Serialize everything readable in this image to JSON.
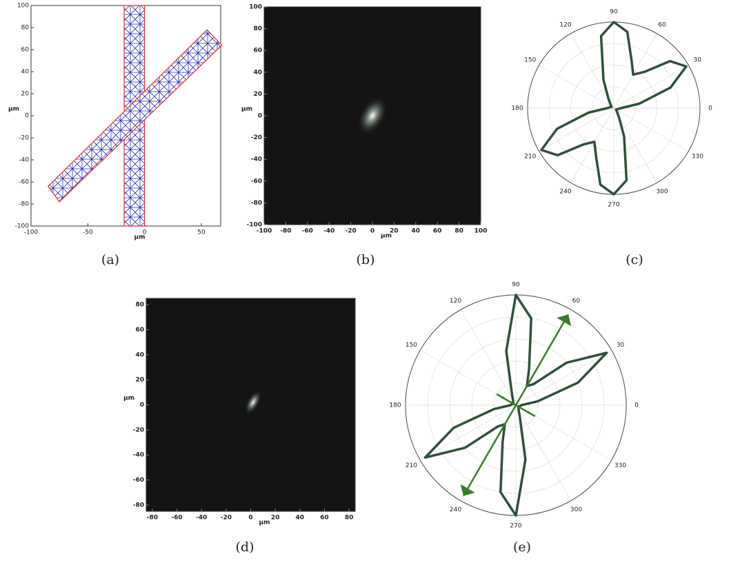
{
  "chart_data": [
    {
      "type": "mesh",
      "caption": "(a)",
      "xlabel": "µm",
      "ylabel": "µm",
      "xlim": [
        -100,
        67
      ],
      "ylim": [
        -100,
        100
      ],
      "xticks": [
        -100,
        -50,
        0,
        50
      ],
      "yticks": [
        -100,
        -80,
        -60,
        -40,
        -20,
        0,
        20,
        40,
        60,
        80,
        100
      ],
      "shapes": [
        {
          "x": [
            -18,
            0,
            0,
            -18
          ],
          "y": [
            -100,
            -100,
            100,
            100
          ]
        },
        {
          "x": [
            -85,
            -75,
            68,
            55
          ],
          "y": [
            -64,
            -78,
            64,
            78
          ]
        }
      ],
      "color": "#2a2fb0",
      "edge_color": "#e0302a"
    },
    {
      "type": "image",
      "caption": "(b)",
      "xlabel": "µm",
      "ylabel": "µm",
      "xlim": [
        -100,
        100
      ],
      "ylim": [
        -100,
        100
      ],
      "xticks": [
        -100,
        -80,
        -60,
        -40,
        -20,
        0,
        20,
        40,
        60,
        80,
        100
      ],
      "yticks": [
        -100,
        -80,
        -60,
        -40,
        -20,
        0,
        20,
        40,
        60,
        80,
        100
      ],
      "x": [
        0
      ],
      "y": [
        0
      ]
    },
    {
      "type": "polar",
      "caption": "(c)",
      "thetaticks": [
        0,
        30,
        60,
        90,
        120,
        150,
        180,
        210,
        240,
        270,
        300,
        330
      ],
      "rlim": [
        0,
        1
      ],
      "rticks": [
        0.25,
        0.5,
        0.75,
        1
      ],
      "theta": [
        0,
        10,
        20,
        30,
        40,
        50,
        60,
        70,
        80,
        90,
        100,
        110,
        120,
        130,
        140,
        150,
        160,
        170,
        180,
        190,
        200,
        210,
        220,
        230,
        240,
        250,
        260,
        270,
        280,
        290,
        300,
        310,
        320,
        330,
        340,
        350
      ],
      "values": [
        0.08,
        0.3,
        0.7,
        0.97,
        0.85,
        0.55,
        0.45,
        0.6,
        0.9,
        1.0,
        0.85,
        0.35,
        0.12,
        0.06,
        0.04,
        0.03,
        0.04,
        0.05,
        0.08,
        0.3,
        0.7,
        0.97,
        0.85,
        0.55,
        0.45,
        0.6,
        0.9,
        1.0,
        0.85,
        0.35,
        0.12,
        0.06,
        0.04,
        0.03,
        0.04,
        0.05
      ],
      "color": "#2f4f3a"
    },
    {
      "type": "image",
      "caption": "(d)",
      "xlabel": "µm",
      "ylabel": "µm",
      "xlim": [
        -85,
        85
      ],
      "ylim": [
        -85,
        85
      ],
      "xticks": [
        -80,
        -60,
        -40,
        -20,
        0,
        20,
        40,
        60,
        80
      ],
      "yticks": [
        -80,
        -60,
        -40,
        -20,
        0,
        20,
        40,
        60,
        80
      ],
      "x": [
        2
      ],
      "y": [
        2
      ]
    },
    {
      "type": "polar",
      "caption": "(e)",
      "thetaticks": [
        0,
        30,
        60,
        90,
        120,
        150,
        180,
        210,
        240,
        270,
        300,
        330
      ],
      "rlim": [
        0,
        1
      ],
      "rticks": [
        0.2,
        0.4,
        0.6,
        0.8,
        1
      ],
      "theta": [
        0,
        10,
        20,
        30,
        40,
        50,
        60,
        70,
        80,
        90,
        100,
        110,
        120,
        130,
        140,
        150,
        160,
        170,
        180,
        190,
        200,
        210,
        220,
        230,
        240,
        250,
        260,
        270,
        280,
        290,
        300,
        310,
        320,
        330,
        340,
        350
      ],
      "values": [
        0.05,
        0.2,
        0.6,
        0.95,
        0.6,
        0.25,
        0.2,
        0.35,
        0.8,
        1.0,
        0.5,
        0.1,
        0.05,
        0.04,
        0.03,
        0.03,
        0.03,
        0.04,
        0.05,
        0.2,
        0.6,
        0.95,
        0.6,
        0.25,
        0.2,
        0.35,
        0.8,
        1.0,
        0.5,
        0.1,
        0.05,
        0.04,
        0.03,
        0.03,
        0.03,
        0.04
      ],
      "color": "#2f4f3a",
      "arrows": {
        "theta": [
          60,
          240,
          150,
          330
        ],
        "r": [
          0.95,
          0.95,
          0.2,
          0.2
        ],
        "color": "#3a7a2a"
      }
    }
  ]
}
